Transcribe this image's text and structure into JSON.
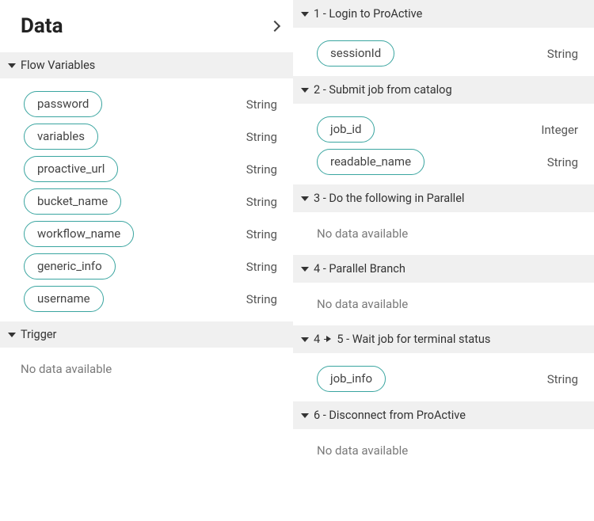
{
  "panel": {
    "title": "Data"
  },
  "sections": {
    "flowVars": {
      "title": "Flow Variables",
      "items": [
        {
          "name": "password",
          "type": "String"
        },
        {
          "name": "variables",
          "type": "String"
        },
        {
          "name": "proactive_url",
          "type": "String"
        },
        {
          "name": "bucket_name",
          "type": "String"
        },
        {
          "name": "workflow_name",
          "type": "String"
        },
        {
          "name": "generic_info",
          "type": "String"
        },
        {
          "name": "username",
          "type": "String"
        }
      ]
    },
    "trigger": {
      "title": "Trigger",
      "empty": "No data available"
    }
  },
  "steps": [
    {
      "num": "1",
      "title": "Login to ProActive",
      "items": [
        {
          "name": "sessionId",
          "type": "String"
        }
      ]
    },
    {
      "num": "2",
      "title": "Submit job from catalog",
      "items": [
        {
          "name": "job_id",
          "type": "Integer"
        },
        {
          "name": "readable_name",
          "type": "String"
        }
      ]
    },
    {
      "num": "3",
      "title": "Do the following in Parallel",
      "empty": "No data available"
    },
    {
      "num": "4",
      "title": "Parallel Branch",
      "empty": "No data available"
    },
    {
      "numFrom": "4",
      "numTo": "5",
      "title": "Wait job for terminal status",
      "items": [
        {
          "name": "job_info",
          "type": "String"
        }
      ]
    },
    {
      "num": "6",
      "title": "Disconnect from ProActive",
      "empty": "No data available"
    }
  ],
  "strings": {
    "dash": " - "
  }
}
